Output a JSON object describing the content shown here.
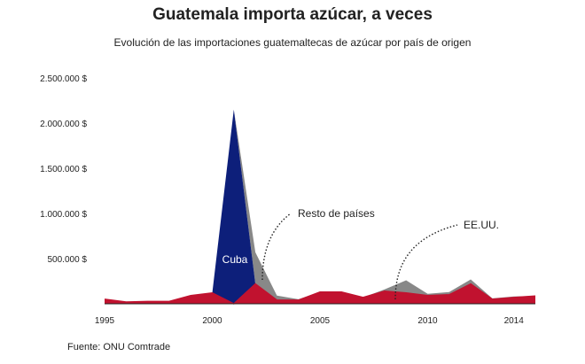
{
  "title": "Guatemala importa azúcar, a veces",
  "subtitle": "Evolución de las importaciones guatemaltecas de azúcar por país de origen",
  "source": "Fuente: ONU Comtrade",
  "colors": {
    "resto": "#888888",
    "cuba": "#0d1f7a",
    "eeuu": "#c1122f"
  },
  "chart_data": {
    "type": "area",
    "stacked": true,
    "x": [
      1995,
      1996,
      1997,
      1998,
      1999,
      2000,
      2001,
      2002,
      2003,
      2004,
      2005,
      2006,
      2007,
      2008,
      2009,
      2010,
      2011,
      2012,
      2013,
      2014,
      2015
    ],
    "xticks": [
      1995,
      2000,
      2005,
      2010,
      2014
    ],
    "xlim": [
      1995,
      2015
    ],
    "ylim": [
      0,
      2500000
    ],
    "yticks": [
      500000,
      1000000,
      1500000,
      2000000,
      2500000
    ],
    "ytick_labels": [
      "500.000 $",
      "1.000.000 $",
      "1.500.000 $",
      "2.000.000 $",
      "2.500.000 $"
    ],
    "series": [
      {
        "name": "EE.UU.",
        "values": [
          50000,
          20000,
          25000,
          25000,
          90000,
          120000,
          0,
          220000,
          40000,
          40000,
          130000,
          130000,
          70000,
          140000,
          120000,
          90000,
          100000,
          220000,
          50000,
          70000,
          85000
        ]
      },
      {
        "name": "Cuba",
        "values": [
          0,
          0,
          0,
          0,
          0,
          0,
          2150000,
          0,
          0,
          0,
          0,
          0,
          0,
          0,
          0,
          0,
          0,
          0,
          0,
          0,
          0
        ]
      },
      {
        "name": "Resto de países",
        "values": [
          0,
          0,
          0,
          0,
          0,
          0,
          0,
          350000,
          50000,
          10000,
          0,
          0,
          0,
          20000,
          140000,
          20000,
          30000,
          50000,
          10000,
          10000,
          0
        ]
      }
    ],
    "annotations": [
      "Resto de países",
      "EE.UU."
    ]
  }
}
